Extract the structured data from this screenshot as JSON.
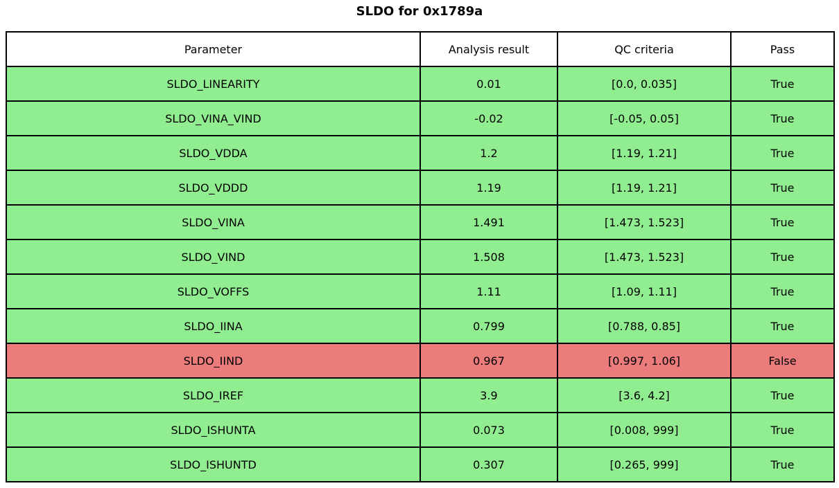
{
  "title": "SLDO for 0x1789a",
  "colors": {
    "pass_green": "#90ee90",
    "fail_red": "#ec7c7c",
    "border": "#000000",
    "header_bg": "#ffffff"
  },
  "chart_data": {
    "type": "table",
    "title": "SLDO for 0x1789a",
    "columns": [
      "Parameter",
      "Analysis result",
      "QC criteria",
      "Pass"
    ],
    "rows": [
      [
        "SLDO_LINEARITY",
        "0.01",
        "[0.0, 0.035]",
        "True"
      ],
      [
        "SLDO_VINA_VIND",
        "-0.02",
        "[-0.05, 0.05]",
        "True"
      ],
      [
        "SLDO_VDDA",
        "1.2",
        "[1.19, 1.21]",
        "True"
      ],
      [
        "SLDO_VDDD",
        "1.19",
        "[1.19, 1.21]",
        "True"
      ],
      [
        "SLDO_VINA",
        "1.491",
        "[1.473, 1.523]",
        "True"
      ],
      [
        "SLDO_VIND",
        "1.508",
        "[1.473, 1.523]",
        "True"
      ],
      [
        "SLDO_VOFFS",
        "1.11",
        "[1.09, 1.11]",
        "True"
      ],
      [
        "SLDO_IINA",
        "0.799",
        "[0.788, 0.85]",
        "True"
      ],
      [
        "SLDO_IIND",
        "0.967",
        "[0.997, 1.06]",
        "False"
      ],
      [
        "SLDO_IREF",
        "3.9",
        "[3.6, 4.2]",
        "True"
      ],
      [
        "SLDO_ISHUNTA",
        "0.073",
        "[0.008, 999]",
        "True"
      ],
      [
        "SLDO_ISHUNTD",
        "0.307",
        "[0.265, 999]",
        "True"
      ]
    ],
    "row_status": [
      "pass",
      "pass",
      "pass",
      "pass",
      "pass",
      "pass",
      "pass",
      "pass",
      "fail",
      "pass",
      "pass",
      "pass"
    ]
  }
}
